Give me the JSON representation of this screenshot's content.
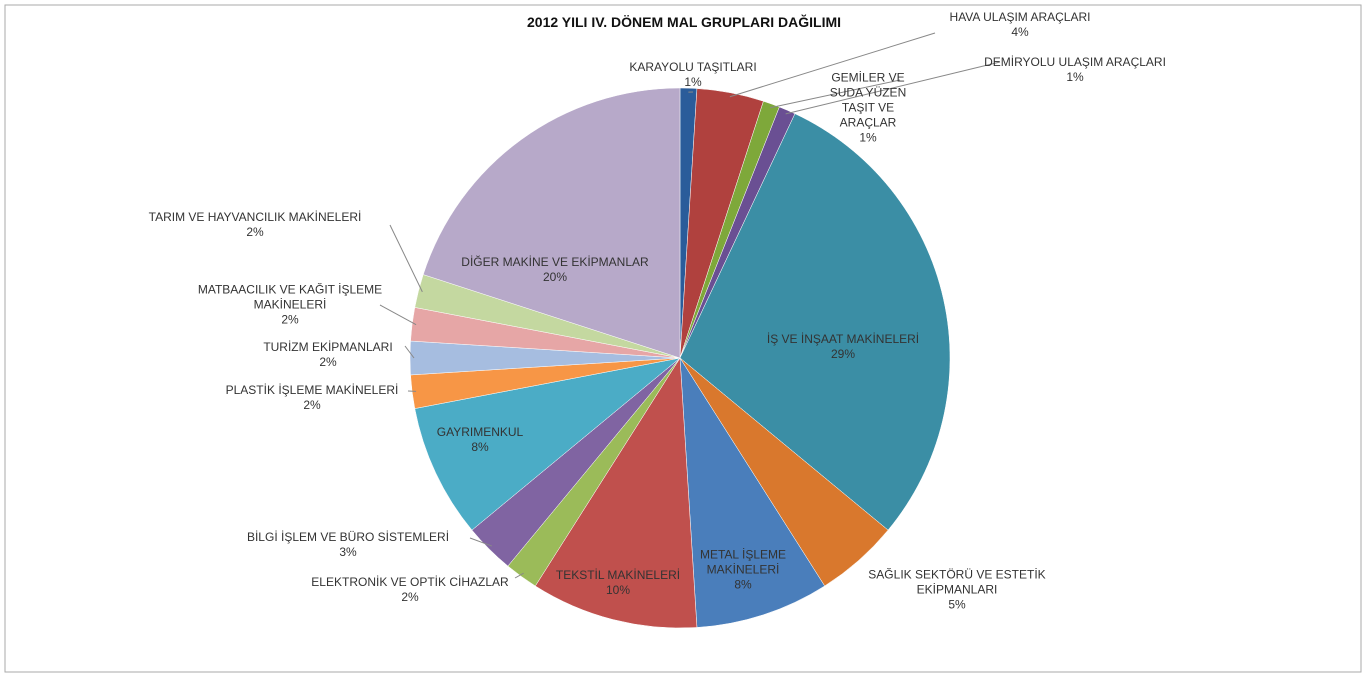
{
  "chart_data": {
    "type": "pie",
    "title": "2012 YILI  IV. DÖNEM MAL GRUPLARI DAĞILIMI",
    "categories": [
      "KARAYOLU TAŞITLARI",
      "HAVA ULAŞIM ARAÇLARI",
      "GEMİLER VE SUDA YÜZEN TAŞIT VE ARAÇLAR",
      "DEMİRYOLU ULAŞIM ARAÇLARI",
      "İŞ VE İNŞAAT MAKİNELERİ",
      "SAĞLIK SEKTÖRÜ VE ESTETİK EKİPMANLARI",
      "METAL İŞLEME MAKİNELERİ",
      "TEKSTİL MAKİNELERİ",
      "ELEKTRONİK VE OPTİK CİHAZLAR",
      "BİLGİ İŞLEM VE BÜRO SİSTEMLERİ",
      "GAYRIMENKUL",
      "PLASTİK İŞLEME MAKİNELERİ",
      "TURİZM EKİPMANLARI",
      "MATBAACILIK VE KAĞIT İŞLEME MAKİNELERİ",
      "TARIM VE HAYVANCILIK MAKİNELERİ",
      "DİĞER MAKİNE VE EKİPMANLAR"
    ],
    "values": [
      1,
      4,
      1,
      1,
      29,
      5,
      8,
      10,
      2,
      3,
      8,
      2,
      2,
      2,
      2,
      20
    ],
    "value_labels": [
      "1%",
      "4%",
      "1%",
      "1%",
      "29%",
      "5%",
      "8%",
      "10%",
      "2%",
      "3%",
      "8%",
      "2%",
      "2%",
      "2%",
      "2%",
      "20%"
    ],
    "colors": [
      "#2a5c9a",
      "#b0413e",
      "#7ea83a",
      "#6a4f93",
      "#3b8ea5",
      "#d9782d",
      "#4a7ebb",
      "#c0504d",
      "#9bbb59",
      "#8064a2",
      "#4bacc6",
      "#f79646",
      "#a6bde0",
      "#e6a6a6",
      "#c4d8a0",
      "#b7a9c9"
    ]
  }
}
